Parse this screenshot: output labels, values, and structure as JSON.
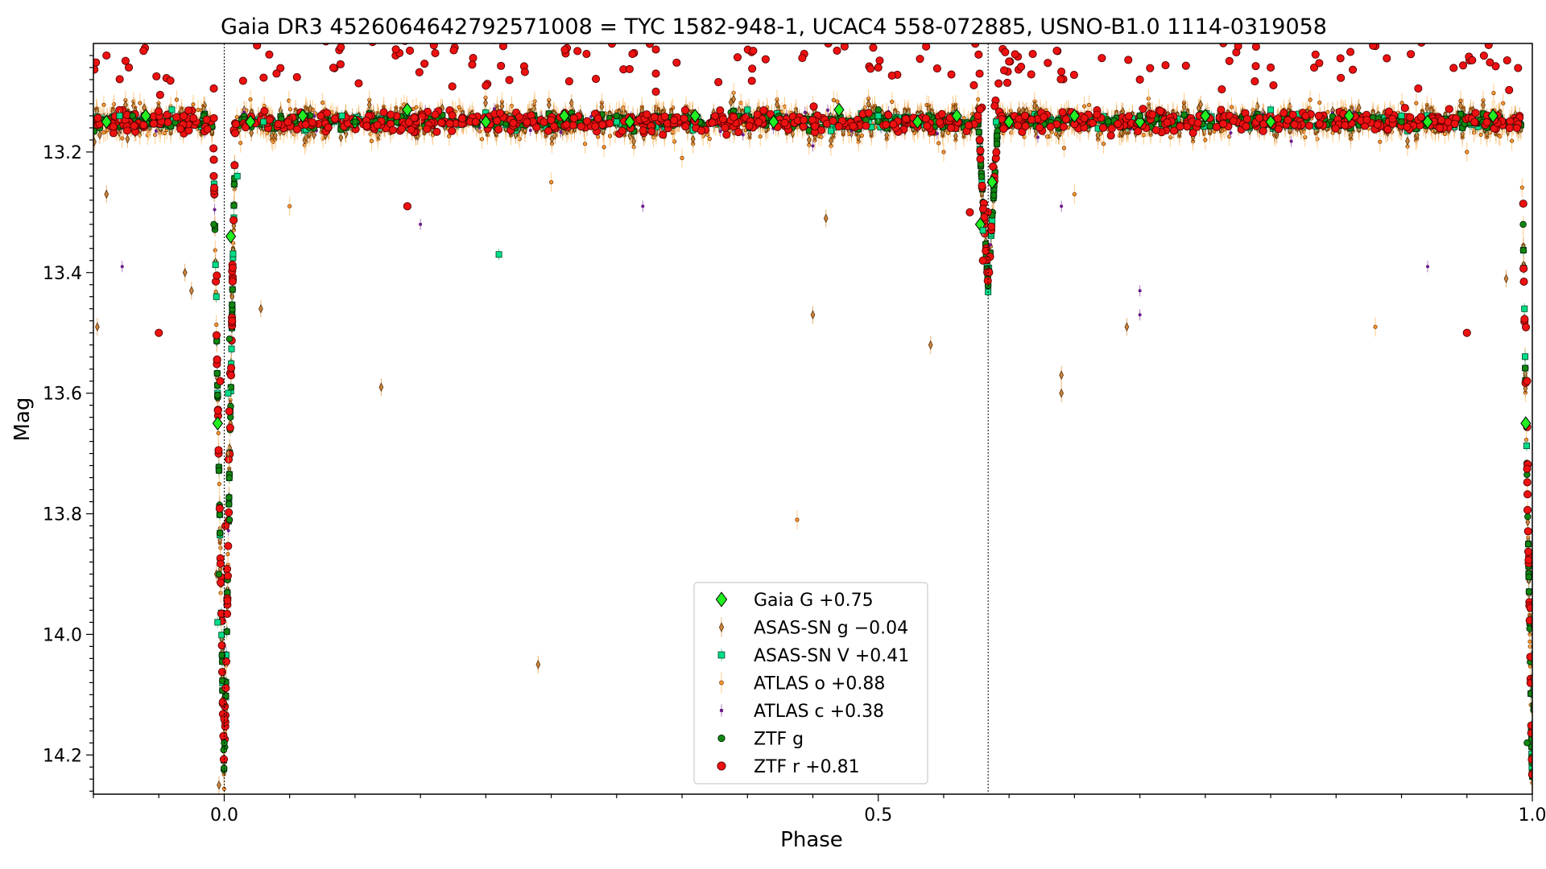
{
  "chart_data": {
    "type": "scatter",
    "title": "Gaia DR3 4526064642792571008 = TYC 1582-948-1, UCAC4 558-072885, USNO-B1.0 1114-0319058",
    "xlabel": "Phase",
    "ylabel": "Mag",
    "xlim": [
      -0.1,
      1.0
    ],
    "ylim": [
      14.265,
      13.02
    ],
    "y_inverted": true,
    "x_ticks": [
      0.0,
      0.5,
      1.0
    ],
    "x_tick_labels": [
      "0.0",
      "0.5",
      "1.0"
    ],
    "y_ticks": [
      13.2,
      13.4,
      13.6,
      13.8,
      14.0,
      14.2
    ],
    "y_tick_labels": [
      "13.2",
      "13.4",
      "13.6",
      "13.8",
      "14.0",
      "14.2"
    ],
    "vertical_lines": [
      0.0,
      0.584
    ],
    "legend_position": "lower-center",
    "light_curve": {
      "baseline_mag": 13.15,
      "primary_eclipse": {
        "phase": 0.0,
        "depth_mag": 14.25
      },
      "secondary_eclipse": {
        "phase": 0.584,
        "depth_mag": 13.42
      }
    },
    "series": [
      {
        "name": "Gaia G +0.75",
        "marker": "diamond",
        "color": "#22ee22",
        "edge": "#000000",
        "points": [
          [
            -0.09,
            13.15
          ],
          [
            -0.06,
            13.14
          ],
          [
            0.02,
            13.15
          ],
          [
            0.06,
            13.14
          ],
          [
            0.1,
            13.15
          ],
          [
            0.14,
            13.13
          ],
          [
            0.2,
            13.15
          ],
          [
            0.26,
            13.14
          ],
          [
            0.31,
            13.15
          ],
          [
            0.36,
            13.14
          ],
          [
            0.42,
            13.15
          ],
          [
            0.47,
            13.13
          ],
          [
            0.53,
            13.15
          ],
          [
            0.56,
            13.14
          ],
          [
            0.6,
            13.15
          ],
          [
            0.65,
            13.14
          ],
          [
            0.7,
            13.15
          ],
          [
            0.75,
            13.14
          ],
          [
            0.8,
            13.15
          ],
          [
            0.86,
            13.14
          ],
          [
            0.92,
            13.15
          ],
          [
            0.97,
            13.14
          ],
          [
            -0.005,
            13.65
          ],
          [
            0.005,
            13.34
          ],
          [
            0.578,
            13.32
          ],
          [
            0.587,
            13.25
          ],
          [
            0.995,
            13.65
          ]
        ]
      },
      {
        "name": "ASAS-SN g −0.04",
        "marker": "thin-diamond",
        "color": "#cd853f",
        "edge": "#5a3000",
        "points": [
          [
            -0.097,
            13.49
          ],
          [
            -0.09,
            13.27
          ],
          [
            -0.03,
            13.4
          ],
          [
            -0.025,
            13.43
          ],
          [
            0.028,
            13.46
          ],
          [
            0.12,
            13.59
          ],
          [
            0.24,
            14.05
          ],
          [
            0.45,
            13.47
          ],
          [
            0.46,
            13.31
          ],
          [
            0.54,
            13.52
          ],
          [
            0.64,
            13.6
          ],
          [
            0.64,
            13.57
          ],
          [
            0.69,
            13.49
          ],
          [
            0.98,
            13.41
          ],
          [
            -0.004,
            14.25
          ],
          [
            -0.006,
            13.9
          ],
          [
            0.003,
            13.7
          ]
        ]
      },
      {
        "name": "ASAS-SN V +0.41",
        "marker": "square",
        "color": "#00dd88",
        "edge": "#004422",
        "points": [
          [
            -0.08,
            13.14
          ],
          [
            -0.04,
            13.13
          ],
          [
            0.01,
            13.24
          ],
          [
            0.03,
            13.15
          ],
          [
            0.09,
            13.14
          ],
          [
            0.21,
            13.37
          ],
          [
            0.3,
            13.15
          ],
          [
            0.4,
            13.13
          ],
          [
            0.5,
            13.14
          ],
          [
            0.59,
            13.15
          ],
          [
            0.7,
            13.14
          ],
          [
            0.8,
            13.13
          ],
          [
            0.9,
            13.14
          ],
          [
            -0.006,
            13.44
          ],
          [
            -0.005,
            13.98
          ],
          [
            0.003,
            13.6
          ],
          [
            0.58,
            13.33
          ],
          [
            0.994,
            13.46
          ]
        ]
      },
      {
        "name": "ATLAS o +0.88",
        "marker": "small-circle",
        "color": "#ff9933",
        "edge": "#7a3a00",
        "points": [
          [
            -0.02,
            13.13
          ],
          [
            0.05,
            13.29
          ],
          [
            0.15,
            13.16
          ],
          [
            0.25,
            13.25
          ],
          [
            0.35,
            13.21
          ],
          [
            0.438,
            13.81
          ],
          [
            0.55,
            13.2
          ],
          [
            0.65,
            13.27
          ],
          [
            0.75,
            13.18
          ],
          [
            0.88,
            13.49
          ],
          [
            0.95,
            13.2
          ]
        ]
      },
      {
        "name": "ATLAS c +0.38",
        "marker": "small-dot",
        "color": "#7b1fa2",
        "edge": "#3a0050",
        "points": [
          [
            -0.078,
            13.39
          ],
          [
            0.15,
            13.32
          ],
          [
            0.32,
            13.29
          ],
          [
            0.45,
            13.19
          ],
          [
            0.64,
            13.29
          ],
          [
            0.7,
            13.47
          ],
          [
            0.7,
            13.43
          ],
          [
            0.92,
            13.39
          ]
        ]
      },
      {
        "name": "ZTF g",
        "marker": "circle",
        "color": "#118811",
        "edge": "#002200",
        "points": [
          [
            -0.07,
            13.14
          ],
          [
            0.0,
            14.18
          ],
          [
            0.004,
            13.81
          ],
          [
            -0.008,
            13.32
          ],
          [
            -0.004,
            13.9
          ],
          [
            0.004,
            13.51
          ],
          [
            0.1,
            13.15
          ],
          [
            0.3,
            13.14
          ],
          [
            0.5,
            13.13
          ],
          [
            0.7,
            13.14
          ],
          [
            0.9,
            13.15
          ],
          [
            0.996,
            14.18
          ],
          [
            0.993,
            13.32
          ]
        ]
      },
      {
        "name": "ZTF r +0.81",
        "marker": "circle",
        "color": "#ee1111",
        "edge": "#550000",
        "points": [
          [
            -0.09,
            13.04
          ],
          [
            -0.05,
            13.5
          ],
          [
            0.04,
            13.07
          ],
          [
            0.14,
            13.29
          ],
          [
            0.2,
            13.09
          ],
          [
            0.33,
            13.03
          ],
          [
            0.33,
            13.07
          ],
          [
            0.33,
            13.1
          ],
          [
            0.5,
            13.06
          ],
          [
            0.6,
            13.05
          ],
          [
            0.7,
            13.08
          ],
          [
            0.8,
            13.06
          ],
          [
            0.95,
            13.5
          ],
          [
            -0.008,
            13.24
          ],
          [
            -0.003,
            13.58
          ],
          [
            0.001,
            13.82
          ],
          [
            0.006,
            13.48
          ],
          [
            0.57,
            13.3
          ],
          [
            0.58,
            13.38
          ],
          [
            0.996,
            13.58
          ]
        ]
      }
    ]
  }
}
